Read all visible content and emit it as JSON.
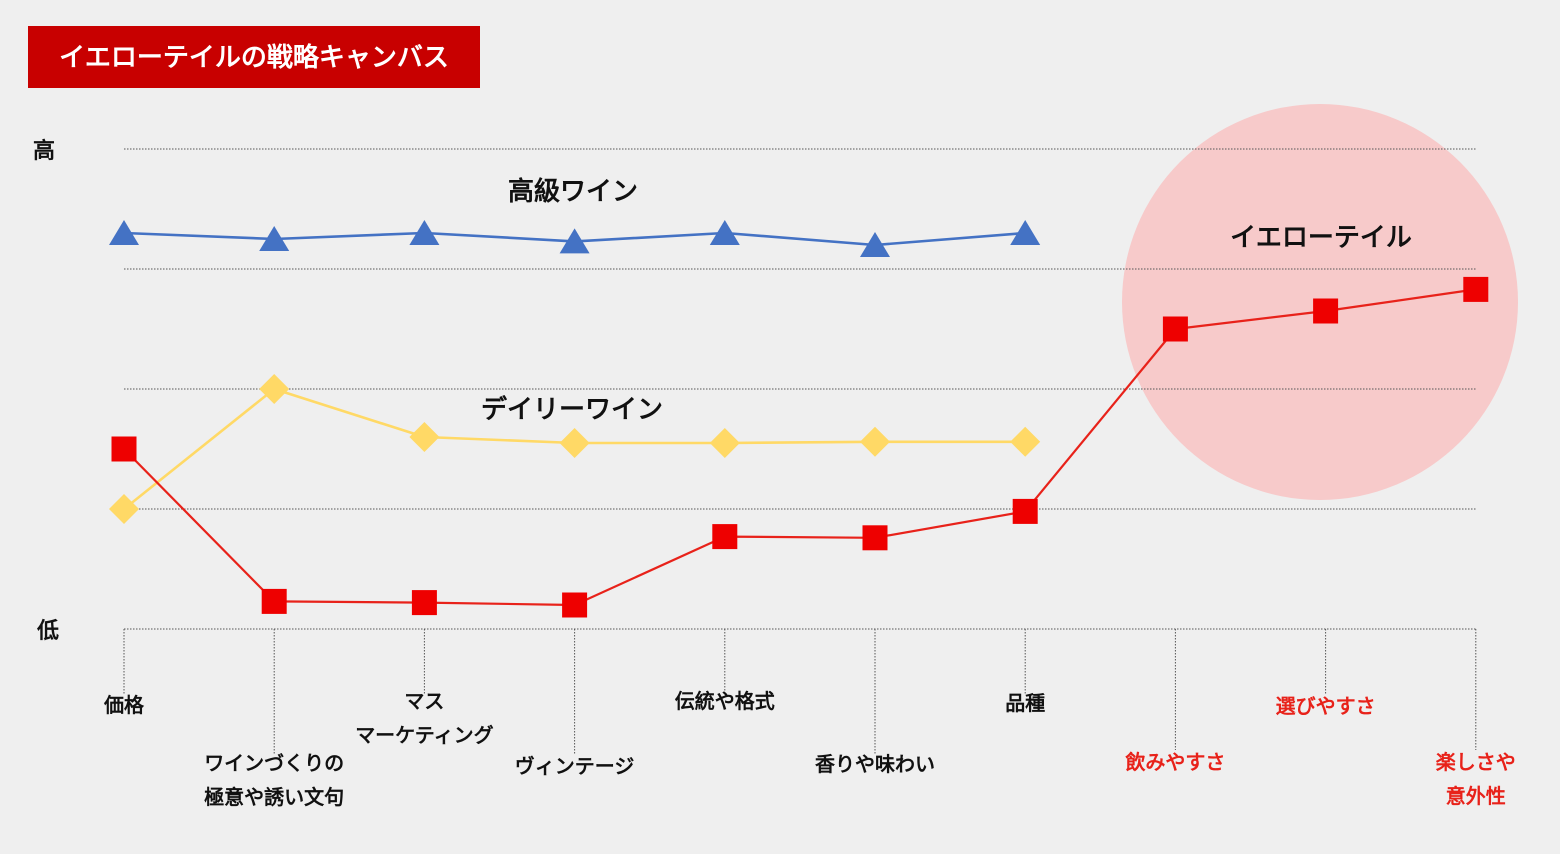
{
  "title": "イエローテイルの戦略キャンバス",
  "colors": {
    "title_bg": "#c80000",
    "title_text": "#ffffff",
    "grid": "#555555",
    "high_end": "#4472c4",
    "daily": "#ffd966",
    "yellow_tail": "#e8221a",
    "yellow_tail_marker": "#ee0000",
    "highlight": "#f7caca",
    "label_dark": "#111111",
    "label_red": "#e8221a"
  },
  "chart_data": {
    "type": "line",
    "title": "イエローテイルの戦略キャンバス",
    "y_labels": {
      "high": "高",
      "low": "低"
    },
    "ylim": [
      0,
      4
    ],
    "grid": true,
    "categories": [
      {
        "lines": [
          "価格"
        ],
        "highlight": false
      },
      {
        "lines": [
          "ワインづくりの",
          "極意や誘い文句"
        ],
        "highlight": false
      },
      {
        "lines": [
          "マス",
          "マーケティング"
        ],
        "highlight": false
      },
      {
        "lines": [
          "ヴィンテージ"
        ],
        "highlight": false
      },
      {
        "lines": [
          "伝統や格式"
        ],
        "highlight": false
      },
      {
        "lines": [
          "香りや味わい"
        ],
        "highlight": false
      },
      {
        "lines": [
          "品種"
        ],
        "highlight": false
      },
      {
        "lines": [
          "飲みやすさ"
        ],
        "highlight": true
      },
      {
        "lines": [
          "選びやすさ"
        ],
        "highlight": true
      },
      {
        "lines": [
          "楽しさや",
          "意外性"
        ],
        "highlight": true
      }
    ],
    "series": [
      {
        "name": "高級ワイン",
        "marker": "triangle",
        "color_key": "high_end",
        "values": [
          3.3,
          3.25,
          3.3,
          3.23,
          3.3,
          3.2,
          3.3,
          null,
          null,
          null
        ]
      },
      {
        "name": "デイリーワイン",
        "marker": "diamond",
        "color_key": "daily",
        "values": [
          1.0,
          2.0,
          1.6,
          1.55,
          1.55,
          1.56,
          1.56,
          null,
          null,
          null
        ]
      },
      {
        "name": "イエローテイル",
        "marker": "square",
        "color_key": "yellow_tail",
        "values": [
          1.5,
          0.23,
          0.22,
          0.2,
          0.77,
          0.76,
          0.98,
          2.5,
          2.65,
          2.83
        ]
      }
    ],
    "annotations": {
      "highlight_region": "categories 飲みやすさ–楽しさや意外性, upper area",
      "series_label_positions": [
        "above high-end line",
        "above daily line",
        "inside highlight circle"
      ]
    }
  }
}
